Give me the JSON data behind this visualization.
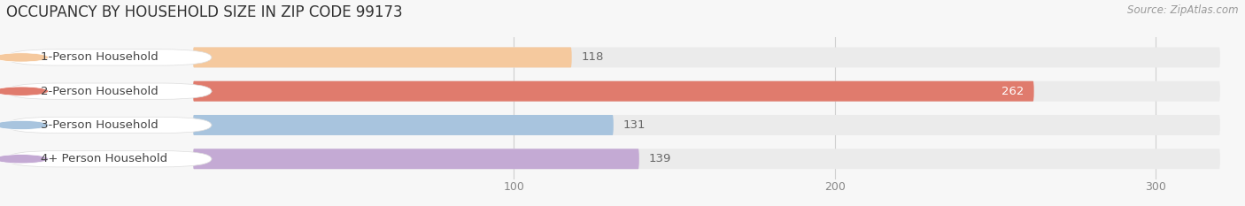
{
  "title": "OCCUPANCY BY HOUSEHOLD SIZE IN ZIP CODE 99173",
  "source": "Source: ZipAtlas.com",
  "categories": [
    "1-Person Household",
    "2-Person Household",
    "3-Person Household",
    "4+ Person Household"
  ],
  "values": [
    118,
    262,
    131,
    139
  ],
  "bar_colors": [
    "#f5c99e",
    "#e07b6d",
    "#a8c4de",
    "#c4aad4"
  ],
  "bg_color": "#f7f7f7",
  "bar_bg_color": "#ebebeb",
  "label_bg_color": "#ffffff",
  "xlim": [
    0,
    320
  ],
  "xticks": [
    100,
    200,
    300
  ],
  "title_fontsize": 12,
  "source_fontsize": 8.5,
  "label_fontsize": 9.5,
  "value_fontsize": 9.5,
  "grid_color": "#d0d0d0",
  "text_color": "#444444",
  "value_label_inside_color": "#ffffff",
  "value_label_outside_color": "#666666"
}
